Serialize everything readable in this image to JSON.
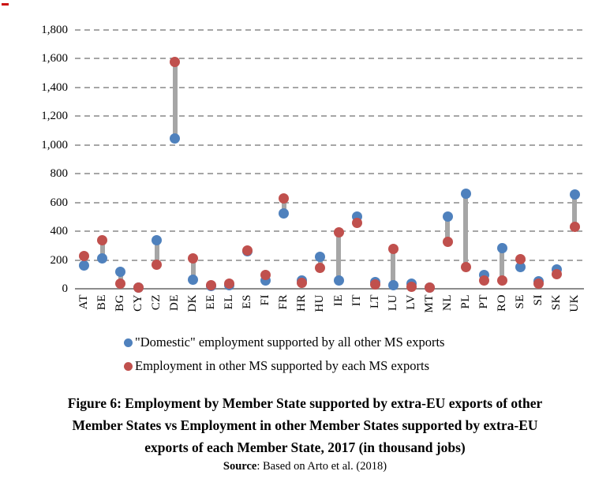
{
  "chart_data": {
    "type": "scatter",
    "subtype": "dumbbell",
    "title": "",
    "unit": "thousand jobs",
    "categories": [
      "AT",
      "BE",
      "BG",
      "CY",
      "CZ",
      "DE",
      "DK",
      "EE",
      "EL",
      "ES",
      "FI",
      "FR",
      "HR",
      "HU",
      "IE",
      "IT",
      "LT",
      "LU",
      "LV",
      "MT",
      "NL",
      "PL",
      "PT",
      "RO",
      "SE",
      "SI",
      "SK",
      "UK"
    ],
    "series": [
      {
        "name": "\"Domestic\" employment supported by all other MS exports",
        "color": "#4f81bd",
        "values": [
          160,
          210,
          120,
          10,
          340,
          1045,
          65,
          20,
          25,
          260,
          60,
          525,
          60,
          225,
          55,
          500,
          45,
          25,
          35,
          10,
          500,
          660,
          95,
          280,
          150,
          50,
          135,
          655
        ]
      },
      {
        "name": "Employment in other MS supported by each MS exports",
        "color": "#c0504d",
        "values": [
          230,
          335,
          35,
          10,
          165,
          1580,
          210,
          25,
          35,
          265,
          95,
          630,
          40,
          145,
          395,
          460,
          30,
          275,
          15,
          10,
          325,
          150,
          60,
          55,
          205,
          35,
          100,
          430
        ]
      }
    ],
    "ylim": [
      0,
      1800
    ],
    "yticks": [
      {
        "value": 0,
        "label": "0"
      },
      {
        "value": 200,
        "label": "200"
      },
      {
        "value": 400,
        "label": "400"
      },
      {
        "value": 600,
        "label": "600"
      },
      {
        "value": 800,
        "label": "800"
      },
      {
        "value": 1000,
        "label": "1,000"
      },
      {
        "value": 1200,
        "label": "1,200"
      },
      {
        "value": 1400,
        "label": "1,400"
      },
      {
        "value": 1600,
        "label": "1,600"
      },
      {
        "value": 1800,
        "label": "1,800"
      }
    ],
    "grid": "horizontal-dashed",
    "legend_position": "bottom",
    "connector_color": "#a6a6a6",
    "gridline_color": "#a6a6a6",
    "axis_line_color": "#8c8c8c"
  },
  "caption": {
    "lines": [
      "Figure 6: Employment by Member State supported by extra-EU exports of other",
      "Member States vs Employment in other Member States supported by extra-EU",
      "exports of each Member State, 2017 (in thousand jobs)"
    ]
  },
  "source": {
    "label": "Source",
    "text": ": Based on Arto et al. (2018)"
  }
}
